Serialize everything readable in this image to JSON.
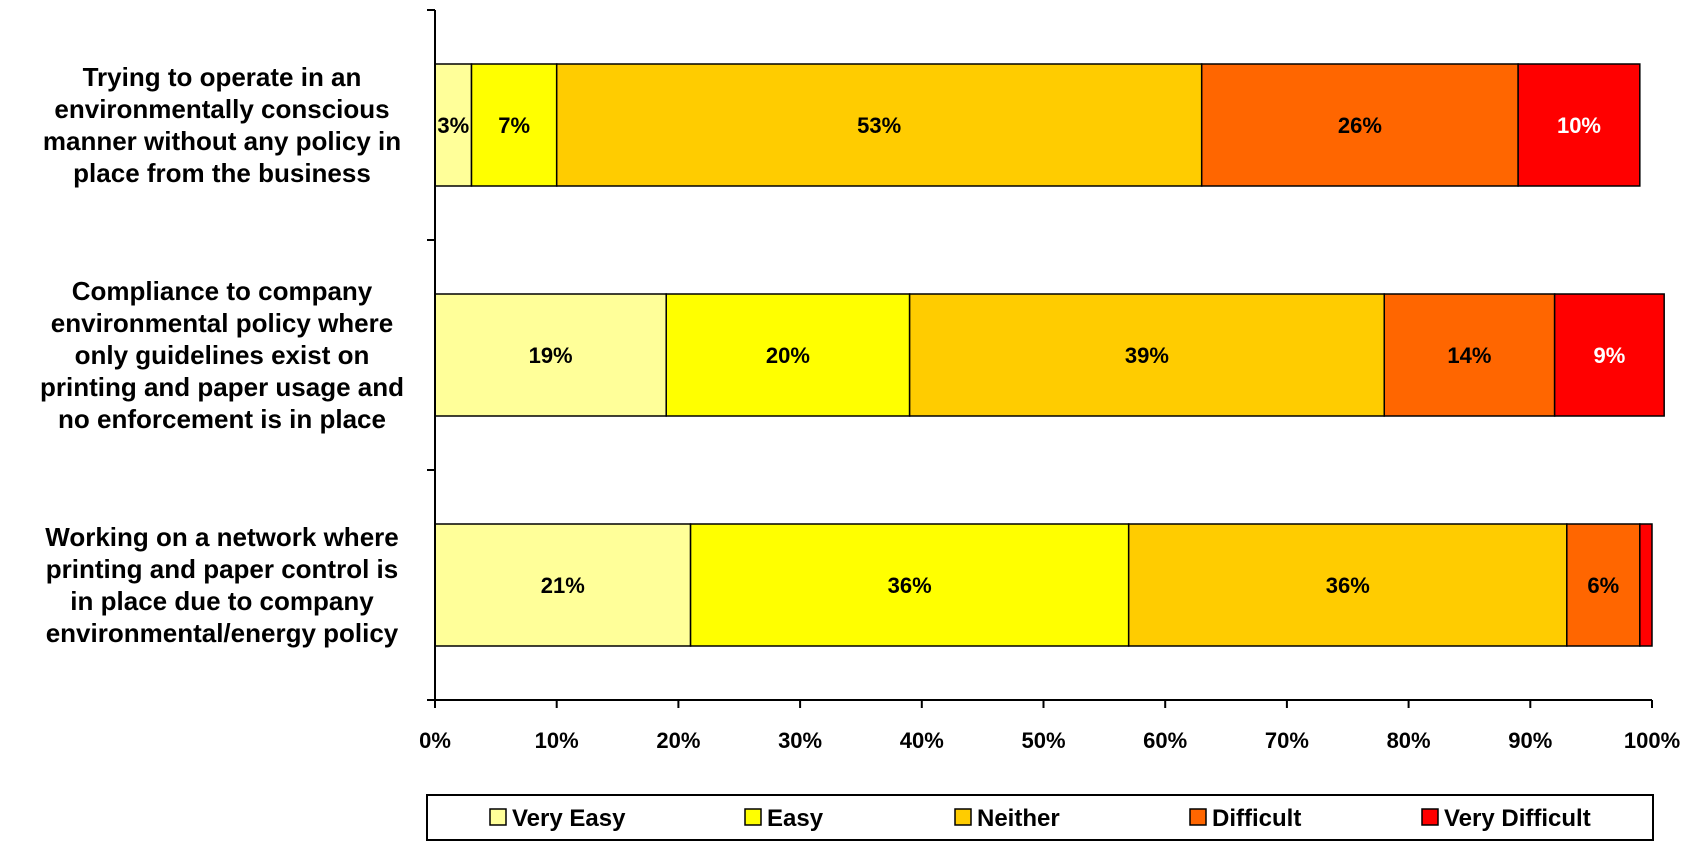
{
  "chart_data": {
    "type": "bar",
    "orientation": "horizontal",
    "stacked": "percent",
    "categories": [
      "Trying to operate in an environmentally conscious manner without any policy in place from the business",
      "Compliance to company environmental policy where only guidelines exist on printing and paper usage and no enforcement is in place",
      "Working on a network where printing and paper control is in place due to company environmental/energy policy"
    ],
    "category_lines": [
      [
        "Trying to operate in an",
        "environmentally conscious",
        "manner without any policy in",
        "place from the business"
      ],
      [
        "Compliance to company",
        "environmental policy where",
        "only guidelines exist on",
        "printing and paper usage and",
        "no enforcement is in place"
      ],
      [
        "Working on a network where",
        "printing and paper control is",
        "in place due to company",
        "environmental/energy policy"
      ]
    ],
    "series": [
      {
        "name": "Very Easy",
        "color": "#FFFF99",
        "label_color": "#000000",
        "values": [
          3,
          19,
          21
        ],
        "labels": [
          "3%",
          "19%",
          "21%"
        ]
      },
      {
        "name": "Easy",
        "color": "#FFFF00",
        "label_color": "#000000",
        "values": [
          7,
          20,
          36
        ],
        "labels": [
          "7%",
          "20%",
          "36%"
        ]
      },
      {
        "name": "Neither",
        "color": "#FFCC00",
        "label_color": "#000000",
        "values": [
          53,
          39,
          36
        ],
        "labels": [
          "53%",
          "39%",
          "36%"
        ]
      },
      {
        "name": "Difficult",
        "color": "#FF6600",
        "label_color": "#000000",
        "values": [
          26,
          14,
          6
        ],
        "labels": [
          "26%",
          "14%",
          "6%"
        ]
      },
      {
        "name": "Very Difficult",
        "color": "#FF0000",
        "label_color": "#FFFFFF",
        "values": [
          10,
          9,
          1
        ],
        "labels": [
          "10%",
          "9%",
          ""
        ]
      }
    ],
    "x_ticks": [
      "0%",
      "10%",
      "20%",
      "30%",
      "40%",
      "50%",
      "60%",
      "70%",
      "80%",
      "90%",
      "100%"
    ],
    "xlim": [
      0,
      100
    ],
    "grid": false,
    "legend_position": "bottom",
    "title": "",
    "xlabel": "",
    "ylabel": ""
  }
}
